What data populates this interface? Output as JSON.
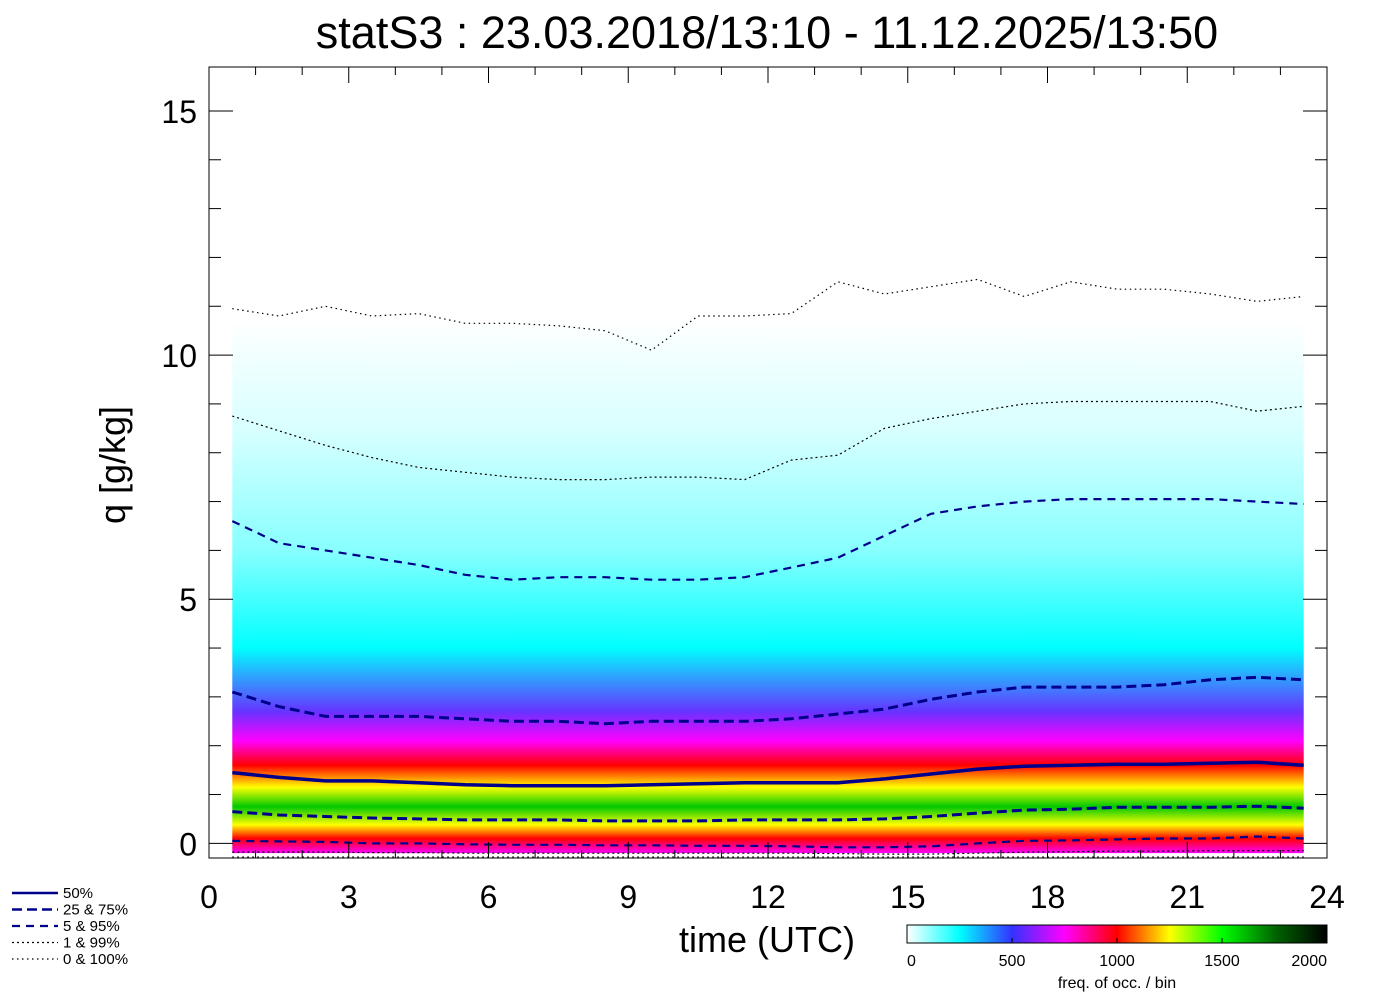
{
  "chart_data": {
    "type": "heatmap",
    "title": "statS3 : 23.03.2018/13:10 - 11.12.2025/13:50",
    "xlabel": "time (UTC)",
    "ylabel": "q [g/kg]",
    "xlim": [
      0,
      24
    ],
    "ylim": [
      -0.3,
      15.9
    ],
    "x_ticks": [
      0,
      3,
      6,
      9,
      12,
      15,
      18,
      21,
      24
    ],
    "x_tick_labels": [
      "0",
      "3",
      "6",
      "9",
      "12",
      "15",
      "18",
      "21",
      "24"
    ],
    "y_ticks": [
      0,
      5,
      10,
      15
    ],
    "y_tick_labels": [
      "0",
      "5",
      "10",
      "15"
    ],
    "colorbar": {
      "label": "freq. of occ. / bin",
      "range": [
        0,
        2000
      ],
      "ticks": [
        0,
        500,
        1000,
        1500,
        2000
      ],
      "tick_labels": [
        "0",
        "500",
        "1000",
        "1500",
        "2000"
      ],
      "colors": [
        "#ffffff",
        "#00ffff",
        "#3333ff",
        "#ff00ff",
        "#ff0000",
        "#ffff00",
        "#00ff00",
        "#006600",
        "#000000"
      ]
    },
    "x": [
      0.5,
      1.5,
      2.5,
      3.5,
      4.5,
      5.5,
      6.5,
      7.5,
      8.5,
      9.5,
      10.5,
      11.5,
      12.5,
      13.5,
      14.5,
      15.5,
      16.5,
      17.5,
      18.5,
      19.5,
      20.5,
      21.5,
      22.5,
      23.5
    ],
    "series": [
      {
        "name": "50%",
        "style": "solid",
        "values": [
          1.45,
          1.35,
          1.28,
          1.28,
          1.24,
          1.2,
          1.18,
          1.18,
          1.18,
          1.2,
          1.22,
          1.24,
          1.24,
          1.24,
          1.32,
          1.42,
          1.52,
          1.58,
          1.6,
          1.62,
          1.62,
          1.64,
          1.66,
          1.6
        ]
      },
      {
        "name": "25 &  75%",
        "style": "dash",
        "values": [
          0.65,
          0.58,
          0.55,
          0.52,
          0.5,
          0.48,
          0.48,
          0.48,
          0.46,
          0.46,
          0.46,
          0.48,
          0.48,
          0.48,
          0.5,
          0.55,
          0.62,
          0.68,
          0.7,
          0.74,
          0.74,
          0.74,
          0.76,
          0.72
        ]
      },
      {
        "name": "25 &  75%",
        "style": "dash",
        "values": [
          3.1,
          2.8,
          2.6,
          2.6,
          2.6,
          2.55,
          2.5,
          2.5,
          2.45,
          2.5,
          2.5,
          2.5,
          2.55,
          2.65,
          2.75,
          2.95,
          3.1,
          3.2,
          3.2,
          3.2,
          3.25,
          3.35,
          3.4,
          3.35
        ]
      },
      {
        "name": "5 &  95%",
        "style": "dash-short",
        "values": [
          0.05,
          0.04,
          0.03,
          0.0,
          0.0,
          -0.02,
          -0.03,
          -0.03,
          -0.04,
          -0.04,
          -0.05,
          -0.05,
          -0.06,
          -0.08,
          -0.08,
          -0.06,
          0.0,
          0.05,
          0.06,
          0.08,
          0.1,
          0.1,
          0.14,
          0.1
        ]
      },
      {
        "name": "5 &  95%",
        "style": "dash-short",
        "values": [
          6.6,
          6.15,
          6.0,
          5.85,
          5.7,
          5.5,
          5.4,
          5.45,
          5.45,
          5.4,
          5.4,
          5.45,
          5.65,
          5.85,
          6.3,
          6.75,
          6.9,
          7.0,
          7.05,
          7.05,
          7.05,
          7.05,
          7.0,
          6.95
        ]
      },
      {
        "name": "1 &  99%",
        "style": "dot",
        "values": [
          -0.18,
          -0.18,
          -0.18,
          -0.19,
          -0.19,
          -0.2,
          -0.2,
          -0.2,
          -0.2,
          -0.2,
          -0.2,
          -0.2,
          -0.2,
          -0.21,
          -0.22,
          -0.22,
          -0.2,
          -0.18,
          -0.17,
          -0.16,
          -0.16,
          -0.15,
          -0.15,
          -0.15
        ]
      },
      {
        "name": "1 &  99%",
        "style": "dot",
        "values": [
          8.75,
          8.45,
          8.15,
          7.9,
          7.7,
          7.6,
          7.5,
          7.45,
          7.45,
          7.5,
          7.5,
          7.45,
          7.85,
          7.95,
          8.5,
          8.7,
          8.85,
          9.0,
          9.05,
          9.05,
          9.05,
          9.05,
          8.85,
          8.95
        ]
      },
      {
        "name": "0 & 100%",
        "style": "dot-sparse",
        "values": [
          -0.28,
          -0.28,
          -0.28,
          -0.28,
          -0.28,
          -0.28,
          -0.28,
          -0.28,
          -0.28,
          -0.28,
          -0.28,
          -0.28,
          -0.28,
          -0.28,
          -0.28,
          -0.28,
          -0.28,
          -0.28,
          -0.28,
          -0.28,
          -0.28,
          -0.28,
          -0.28,
          -0.28
        ]
      },
      {
        "name": "0 & 100%",
        "style": "dot-sparse",
        "values": [
          10.95,
          10.8,
          11.0,
          10.8,
          10.85,
          10.65,
          10.65,
          10.6,
          10.5,
          10.1,
          10.8,
          10.8,
          10.85,
          11.5,
          11.25,
          11.4,
          11.55,
          11.2,
          11.5,
          11.35,
          11.35,
          11.25,
          11.1,
          11.2
        ]
      }
    ],
    "density": {
      "bands": [
        {
          "center": 0.1,
          "width": 0.22,
          "color": "#ff0000"
        },
        {
          "center": 0.38,
          "width": 0.22,
          "color": "#ffff00"
        },
        {
          "center": 0.75,
          "width": 0.4,
          "color": "#00c800"
        },
        {
          "center": 1.15,
          "width": 0.22,
          "color": "#ffff00"
        },
        {
          "center": 1.6,
          "width": 0.32,
          "color": "#ff0000"
        },
        {
          "center": 2.1,
          "width": 0.32,
          "color": "#ff00ff"
        },
        {
          "center": 2.7,
          "width": 0.5,
          "color": "#6633ff"
        },
        {
          "center": 4.0,
          "width": 1.2,
          "color": "#00ffff"
        },
        {
          "center": 6.0,
          "width": 1.2,
          "color": "#88ffff"
        },
        {
          "center": 8.5,
          "width": 1.5,
          "color": "#d9ffff"
        },
        {
          "center": 10.0,
          "width": 0.8,
          "color": "#f2ffff"
        }
      ]
    },
    "legend": {
      "placement": "bottom-left",
      "entries": [
        {
          "label": "50%",
          "style": "solid"
        },
        {
          "label": "25 &  75%",
          "style": "dash"
        },
        {
          "label": "5 &  95%",
          "style": "dash-short"
        },
        {
          "label": "1 &  99%",
          "style": "dot"
        },
        {
          "label": "0 & 100%",
          "style": "dot-sparse"
        }
      ]
    },
    "line_color": "#00008b"
  }
}
